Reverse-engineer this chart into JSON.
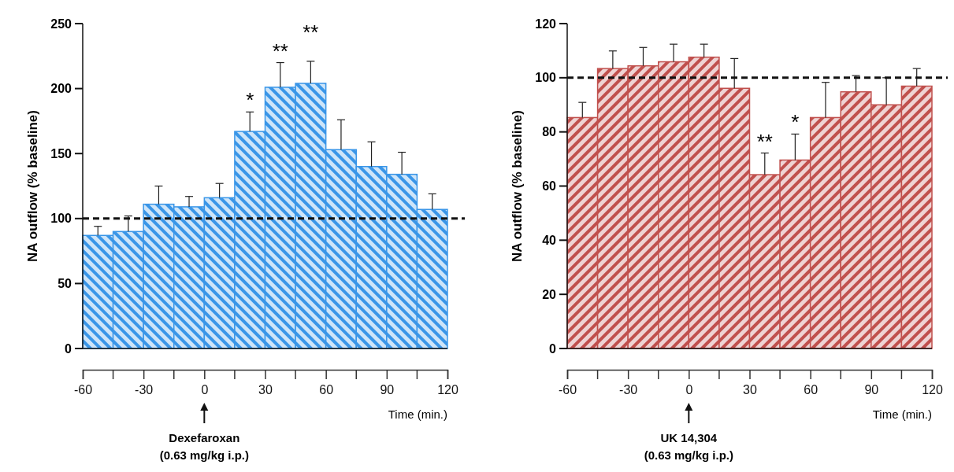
{
  "chart_data": [
    {
      "type": "bar",
      "xlabel": "Time (min.)",
      "ylabel": "NA outflow (% baseline)",
      "x": [
        -52.5,
        -37.5,
        -22.5,
        -7.5,
        7.5,
        22.5,
        37.5,
        52.5,
        67.5,
        82.5,
        97.5,
        112.5
      ],
      "series": [
        {
          "color": "#3a96e8",
          "values": [
            87,
            90,
            111,
            109,
            116,
            167,
            201,
            204,
            153,
            140,
            134,
            107
          ],
          "errors": [
            7,
            12,
            14,
            8,
            11,
            15,
            19,
            17,
            23,
            19,
            17,
            12
          ]
        }
      ],
      "xlim": [
        -60,
        120
      ],
      "xticks": [
        -60,
        -30,
        0,
        30,
        60,
        90,
        120
      ],
      "ylim": [
        0,
        250
      ],
      "yticks": [
        0,
        50,
        100,
        150,
        200,
        250
      ],
      "ref_lines": [
        {
          "axis": "y",
          "value": 100,
          "line_style": "dashed"
        }
      ],
      "annotations": [
        {
          "text": "*",
          "x": 22.5,
          "y": 167
        },
        {
          "text": "**",
          "x": 37.5,
          "y": 201
        },
        {
          "text": "**",
          "x": 52.5,
          "y": 204
        },
        "Dexefaroxan",
        "(0.63 mg/kg i.p.)"
      ]
    },
    {
      "type": "bar",
      "xlabel": "Time (min.)",
      "ylabel": "NA outflow (% baseline)",
      "x": [
        -52.5,
        -37.5,
        -22.5,
        -7.5,
        7.5,
        22.5,
        37.5,
        52.5,
        67.5,
        82.5,
        97.5,
        112.5
      ],
      "series": [
        {
          "color": "#c0504d",
          "values": [
            85.3,
            103.4,
            104.4,
            105.9,
            107.6,
            96.1,
            64.2,
            69.6,
            85.3,
            94.8,
            90,
            96.9
          ],
          "errors": [
            5.6,
            6.5,
            6.8,
            6.5,
            4.8,
            11,
            8,
            9.6,
            13,
            6,
            10,
            6.5
          ]
        }
      ],
      "xlim": [
        -60,
        120
      ],
      "xticks": [
        -60,
        -30,
        0,
        30,
        60,
        90,
        120
      ],
      "ylim": [
        0,
        120
      ],
      "yticks": [
        0,
        20,
        40,
        60,
        80,
        100,
        120
      ],
      "ref_lines": [
        {
          "axis": "y",
          "value": 100,
          "line_style": "dashed"
        }
      ],
      "annotations": [
        {
          "text": "**",
          "x": 37.5,
          "y": 64.2
        },
        {
          "text": "*",
          "x": 52.5,
          "y": 69.6
        },
        "UK 14,304",
        "(0.63 mg/kg i.p.)"
      ]
    }
  ]
}
